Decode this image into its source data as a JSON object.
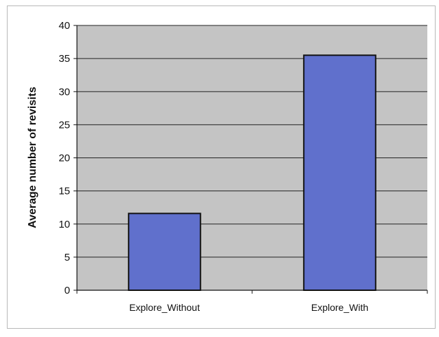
{
  "chart_data": {
    "type": "bar",
    "categories": [
      "Explore_Without",
      "Explore_With"
    ],
    "values": [
      11.6,
      35.5
    ],
    "title": "",
    "xlabel": "",
    "ylabel": "Average number of revisits",
    "ylim": [
      0,
      40
    ],
    "yticks": [
      0,
      5,
      10,
      15,
      20,
      25,
      30,
      35,
      40
    ],
    "grid": true,
    "legend": "none",
    "colors": {
      "bar_fill": "#6070cc",
      "bar_stroke": "#111111",
      "plot_background": "#c4c4c4",
      "gridline": "#222222"
    }
  }
}
